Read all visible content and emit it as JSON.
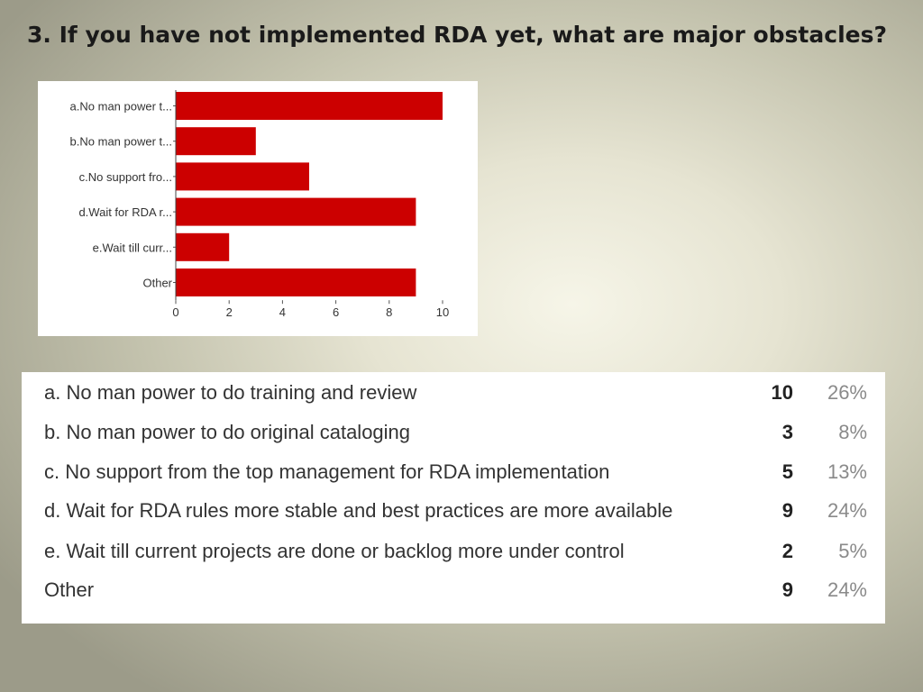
{
  "title": "3. If you have not implemented RDA yet, what are major obstacles?",
  "chart_data": {
    "type": "bar",
    "orientation": "horizontal",
    "title": "",
    "xlabel": "",
    "ylabel": "",
    "categories": [
      "a.No man power t...",
      "b.No man power t...",
      "c.No support fro...",
      "d.Wait for RDA r...",
      "e.Wait till curr...",
      "Other"
    ],
    "values": [
      10,
      3,
      5,
      9,
      2,
      9
    ],
    "xlim": [
      0,
      10
    ],
    "xticks": [
      0,
      2,
      4,
      6,
      8,
      10
    ],
    "grid": false,
    "bar_color": "#cc0000"
  },
  "table": {
    "rows": [
      {
        "label": "a. No man power to do training and review",
        "count": "10",
        "percent": "26%"
      },
      {
        "label": "b. No man power to do original cataloging",
        "count": "3",
        "percent": "8%"
      },
      {
        "label": "c. No support from the top management for RDA implementation",
        "count": "5",
        "percent": "13%"
      },
      {
        "label": "d. Wait for RDA rules more stable and best practices are more available",
        "count": "9",
        "percent": "24%"
      },
      {
        "label": "e. Wait till current projects are done or backlog more under control",
        "count": "2",
        "percent": "5%"
      },
      {
        "label": "Other",
        "count": "9",
        "percent": "24%"
      }
    ]
  }
}
